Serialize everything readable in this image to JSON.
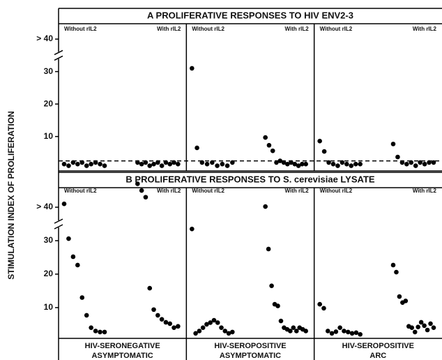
{
  "ylabel": "STIMULATION INDEX OF PROLIFERATION",
  "groups": [
    [
      "HIV-SERONEGATIVE",
      "ASYMPTOMATIC"
    ],
    [
      "HIV-SEROPOSITIVE",
      "ASYMPTOMATIC"
    ],
    [
      "HIV-SEROPOSITIVE",
      "ARC"
    ]
  ],
  "chart_data": [
    {
      "type": "strip",
      "title": "A  PROLIFERATIVE RESPONSES TO HIV ENV2-3",
      "categories": [
        "Without rIL2",
        "With rIL2",
        "Without rIL2",
        "With rIL2",
        "Without rIL2",
        "With rIL2"
      ],
      "values": [
        [
          1.5,
          1,
          2,
          1.5,
          2,
          1,
          1.5,
          2,
          1.5,
          1
        ],
        [
          2,
          1.5,
          2,
          1,
          1.5,
          2,
          1,
          2,
          1.5,
          2,
          1.5
        ],
        [
          31,
          6.5,
          2,
          1.5,
          2,
          1,
          1.5,
          1,
          2
        ],
        [
          9.7,
          7.3,
          5.6,
          2,
          2.5,
          2,
          1.5,
          2,
          1.5,
          1,
          1.5,
          1.5
        ],
        [
          8.6,
          5.4,
          2,
          1.5,
          1,
          2,
          1.5,
          1,
          1.5,
          1.5
        ],
        [
          7.7,
          3.7,
          2,
          1.5,
          2,
          1,
          2,
          1.5,
          2,
          2
        ]
      ],
      "color": "#000000",
      "ylim": [
        -0.6,
        41.3
      ],
      "yticks": [
        10,
        20,
        30,
        {
          "value": 40,
          "label": "> 40"
        }
      ],
      "axis_break": 35,
      "reference_line": 2.5
    },
    {
      "type": "strip",
      "title": "B  PROLIFERATIVE RESPONSES TO S. cerevisiae LYSATE",
      "categories": [
        "Without rIL2",
        "With rIL2",
        "Without rIL2",
        "With rIL2",
        "Without rIL2",
        "With rIL2"
      ],
      "values": [
        [
          41,
          30.6,
          25.2,
          22.7,
          13,
          7.7,
          4,
          3,
          2.7,
          2.7
        ],
        [
          47,
          45,
          43,
          15.8,
          9.4,
          7.7,
          6.5,
          5.6,
          5.2,
          4,
          4.4
        ],
        [
          33.5,
          2.3,
          3,
          4,
          5,
          5.5,
          6.2,
          5.5,
          4,
          3,
          2.3,
          2.7
        ],
        [
          40.2,
          27.5,
          16.5,
          11,
          10.5,
          6,
          4,
          3.5,
          3,
          4,
          3,
          4,
          3.5,
          3
        ],
        [
          11,
          9.8,
          3,
          2.3,
          2.8,
          4,
          3,
          2.7,
          2.3,
          2.5,
          2
        ],
        [
          22.7,
          20.6,
          13.3,
          11.5,
          12,
          4.4,
          4,
          2.7,
          4.2,
          5.6,
          4.6,
          3.3,
          5.2,
          4
        ]
      ],
      "color": "#000000",
      "ylim": [
        0.8,
        47.3
      ],
      "yticks": [
        10,
        20,
        30,
        {
          "value": 40,
          "label": "> 40"
        }
      ],
      "axis_break": 35
    }
  ]
}
